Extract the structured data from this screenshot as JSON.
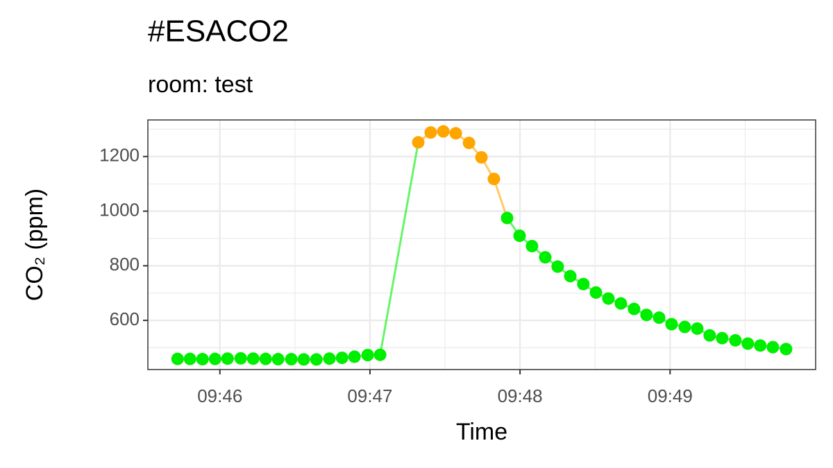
{
  "chart_data": {
    "type": "line",
    "title": "#ESACO2",
    "subtitle": "room: test",
    "x_label": "Time",
    "y_label": "CO₂ (ppm)",
    "xlim": [
      45.52,
      49.97
    ],
    "xticks": [
      {
        "value": 46,
        "label": "09:46"
      },
      {
        "value": 47,
        "label": "09:47"
      },
      {
        "value": 48,
        "label": "09:48"
      },
      {
        "value": 49,
        "label": "09:49"
      }
    ],
    "minor_xticks": [
      46.5,
      47.5,
      48.5,
      49.5
    ],
    "ylim": [
      420,
      1334
    ],
    "yticks": [
      600,
      800,
      1000,
      1200
    ],
    "minor_yticks": [
      500,
      700,
      900,
      1100,
      1300
    ],
    "grid": true,
    "series": [
      {
        "x": [
          45.718,
          45.801,
          45.884,
          45.968,
          46.051,
          46.139,
          46.222,
          46.305,
          46.388,
          46.476,
          46.559,
          46.643,
          46.73,
          46.814,
          46.897,
          46.985,
          47.068,
          47.322,
          47.405,
          47.489,
          47.572,
          47.66,
          47.743,
          47.826,
          47.914,
          47.997,
          48.08,
          48.168,
          48.251,
          48.335,
          48.422,
          48.506,
          48.589,
          48.672,
          48.76,
          48.843,
          48.927,
          49.01,
          49.098,
          49.181,
          49.264,
          49.347,
          49.435,
          49.518,
          49.601,
          49.685,
          49.773
        ],
        "values": [
          459,
          459,
          458,
          459,
          460,
          461,
          460,
          459,
          458,
          458,
          457,
          457,
          460,
          463,
          467,
          473,
          474,
          1252,
          1288,
          1292,
          1285,
          1250,
          1197,
          1118,
          975,
          910,
          872,
          831,
          797,
          762,
          733,
          702,
          680,
          662,
          642,
          620,
          610,
          586,
          576,
          570,
          545,
          535,
          527,
          515,
          508,
          502,
          495
        ],
        "colors": [
          "#00ee00",
          "#00ee00",
          "#00ee00",
          "#00ee00",
          "#00ee00",
          "#00ee00",
          "#00ee00",
          "#00ee00",
          "#00ee00",
          "#00ee00",
          "#00ee00",
          "#00ee00",
          "#00ee00",
          "#00ee00",
          "#00ee00",
          "#00ee00",
          "#00ee00",
          "#ffa500",
          "#ffa500",
          "#ffa500",
          "#ffa500",
          "#ffa500",
          "#ffa500",
          "#ffa500",
          "#00ee00",
          "#00ee00",
          "#00ee00",
          "#00ee00",
          "#00ee00",
          "#00ee00",
          "#00ee00",
          "#00ee00",
          "#00ee00",
          "#00ee00",
          "#00ee00",
          "#00ee00",
          "#00ee00",
          "#00ee00",
          "#00ee00",
          "#00ee00",
          "#00ee00",
          "#00ee00",
          "#00ee00",
          "#00ee00",
          "#00ee00",
          "#00ee00",
          "#00ee00"
        ]
      }
    ]
  }
}
